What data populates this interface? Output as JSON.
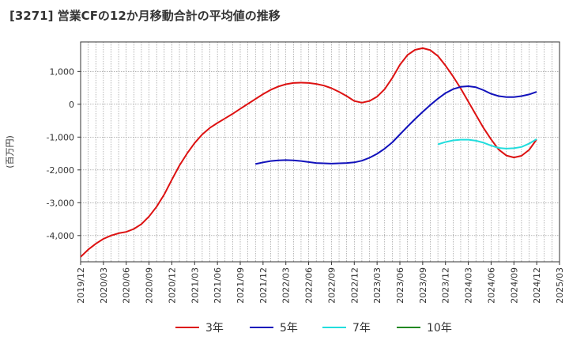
{
  "chart_data": {
    "type": "line",
    "title": "[3271]  営業CFの12か月移動合計の平均値の推移",
    "xlabel": "",
    "ylabel": "(百万円)",
    "ylim": [
      -4800,
      1900
    ],
    "y_ticks": [
      1000,
      0,
      -1000,
      -2000,
      -3000,
      -4000
    ],
    "y_tick_labels": [
      "1,000",
      "0",
      "-1,000",
      "-2,000",
      "-3,000",
      "-4,000"
    ],
    "x_tick_labels": [
      "2019/12",
      "2020/03",
      "2020/06",
      "2020/09",
      "2020/12",
      "2021/03",
      "2021/06",
      "2021/09",
      "2021/12",
      "2022/03",
      "2022/06",
      "2022/09",
      "2022/12",
      "2023/03",
      "2023/06",
      "2023/09",
      "2023/12",
      "2024/03",
      "2024/06",
      "2024/09",
      "2024/12",
      "2025/03"
    ],
    "x_start": "2019/12",
    "x_end": "2025/03",
    "grid": true,
    "legend_position": "bottom",
    "series": [
      {
        "name": "3年",
        "color": "#dd1111",
        "points": [
          [
            "2019/12",
            -4650
          ],
          [
            "2020/01",
            -4430
          ],
          [
            "2020/02",
            -4250
          ],
          [
            "2020/03",
            -4100
          ],
          [
            "2020/04",
            -4000
          ],
          [
            "2020/05",
            -3930
          ],
          [
            "2020/06",
            -3890
          ],
          [
            "2020/07",
            -3800
          ],
          [
            "2020/08",
            -3650
          ],
          [
            "2020/09",
            -3420
          ],
          [
            "2020/10",
            -3120
          ],
          [
            "2020/11",
            -2750
          ],
          [
            "2020/12",
            -2300
          ],
          [
            "2021/01",
            -1870
          ],
          [
            "2021/02",
            -1500
          ],
          [
            "2021/03",
            -1180
          ],
          [
            "2021/04",
            -920
          ],
          [
            "2021/05",
            -720
          ],
          [
            "2021/06",
            -570
          ],
          [
            "2021/07",
            -430
          ],
          [
            "2021/08",
            -290
          ],
          [
            "2021/09",
            -140
          ],
          [
            "2021/10",
            10
          ],
          [
            "2021/11",
            160
          ],
          [
            "2021/12",
            310
          ],
          [
            "2022/01",
            440
          ],
          [
            "2022/02",
            540
          ],
          [
            "2022/03",
            610
          ],
          [
            "2022/04",
            650
          ],
          [
            "2022/05",
            660
          ],
          [
            "2022/06",
            650
          ],
          [
            "2022/07",
            620
          ],
          [
            "2022/08",
            570
          ],
          [
            "2022/09",
            490
          ],
          [
            "2022/10",
            380
          ],
          [
            "2022/11",
            250
          ],
          [
            "2022/12",
            100
          ],
          [
            "2023/01",
            50
          ],
          [
            "2023/02",
            100
          ],
          [
            "2023/03",
            230
          ],
          [
            "2023/04",
            460
          ],
          [
            "2023/05",
            800
          ],
          [
            "2023/06",
            1200
          ],
          [
            "2023/07",
            1500
          ],
          [
            "2023/08",
            1660
          ],
          [
            "2023/09",
            1710
          ],
          [
            "2023/10",
            1650
          ],
          [
            "2023/11",
            1470
          ],
          [
            "2023/12",
            1180
          ],
          [
            "2024/01",
            850
          ],
          [
            "2024/02",
            480
          ],
          [
            "2024/03",
            80
          ],
          [
            "2024/04",
            -320
          ],
          [
            "2024/05",
            -720
          ],
          [
            "2024/06",
            -1070
          ],
          [
            "2024/07",
            -1380
          ],
          [
            "2024/08",
            -1560
          ],
          [
            "2024/09",
            -1620
          ],
          [
            "2024/10",
            -1570
          ],
          [
            "2024/11",
            -1390
          ],
          [
            "2024/12",
            -1070
          ]
        ]
      },
      {
        "name": "5年",
        "color": "#1111bb",
        "points": [
          [
            "2021/11",
            -1820
          ],
          [
            "2021/12",
            -1770
          ],
          [
            "2022/01",
            -1730
          ],
          [
            "2022/02",
            -1710
          ],
          [
            "2022/03",
            -1700
          ],
          [
            "2022/04",
            -1710
          ],
          [
            "2022/05",
            -1730
          ],
          [
            "2022/06",
            -1760
          ],
          [
            "2022/07",
            -1790
          ],
          [
            "2022/08",
            -1800
          ],
          [
            "2022/09",
            -1810
          ],
          [
            "2022/10",
            -1800
          ],
          [
            "2022/11",
            -1790
          ],
          [
            "2022/12",
            -1770
          ],
          [
            "2023/01",
            -1720
          ],
          [
            "2023/02",
            -1630
          ],
          [
            "2023/03",
            -1510
          ],
          [
            "2023/04",
            -1350
          ],
          [
            "2023/05",
            -1160
          ],
          [
            "2023/06",
            -920
          ],
          [
            "2023/07",
            -680
          ],
          [
            "2023/08",
            -450
          ],
          [
            "2023/09",
            -230
          ],
          [
            "2023/10",
            -20
          ],
          [
            "2023/11",
            170
          ],
          [
            "2023/12",
            340
          ],
          [
            "2024/01",
            460
          ],
          [
            "2024/02",
            530
          ],
          [
            "2024/03",
            550
          ],
          [
            "2024/04",
            520
          ],
          [
            "2024/05",
            430
          ],
          [
            "2024/06",
            320
          ],
          [
            "2024/07",
            250
          ],
          [
            "2024/08",
            220
          ],
          [
            "2024/09",
            220
          ],
          [
            "2024/10",
            250
          ],
          [
            "2024/11",
            300
          ],
          [
            "2024/12",
            380
          ]
        ]
      },
      {
        "name": "7年",
        "color": "#22dddd",
        "points": [
          [
            "2023/11",
            -1220
          ],
          [
            "2023/12",
            -1150
          ],
          [
            "2024/01",
            -1100
          ],
          [
            "2024/02",
            -1080
          ],
          [
            "2024/03",
            -1080
          ],
          [
            "2024/04",
            -1110
          ],
          [
            "2024/05",
            -1170
          ],
          [
            "2024/06",
            -1260
          ],
          [
            "2024/07",
            -1330
          ],
          [
            "2024/08",
            -1350
          ],
          [
            "2024/09",
            -1340
          ],
          [
            "2024/10",
            -1300
          ],
          [
            "2024/11",
            -1200
          ],
          [
            "2024/12",
            -1060
          ]
        ]
      },
      {
        "name": "10年",
        "color": "#228822",
        "points": []
      }
    ]
  }
}
